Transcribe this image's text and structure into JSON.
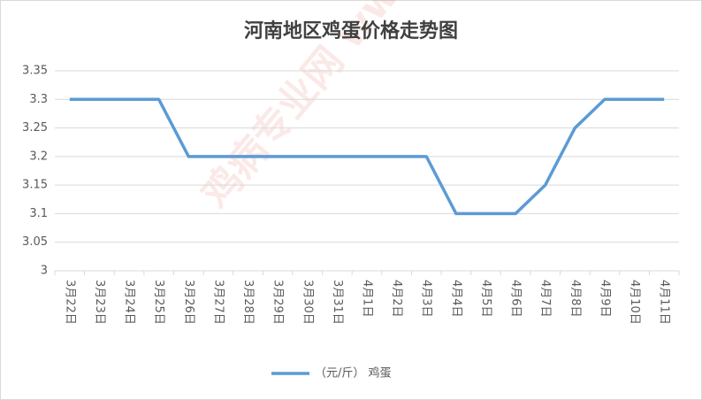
{
  "chart_data": {
    "type": "line",
    "title": "河南地区鸡蛋价格走势图",
    "watermark": "鸡病专业网 www.jbzyw.com",
    "categories": [
      "3月22日",
      "3月23日",
      "3月24日",
      "3月25日",
      "3月26日",
      "3月27日",
      "3月28日",
      "3月29日",
      "3月30日",
      "3月31日",
      "4月1日",
      "4月2日",
      "4月3日",
      "4月4日",
      "4月5日",
      "4月6日",
      "4月7日",
      "4月8日",
      "4月9日",
      "4月10日",
      "4月11日"
    ],
    "series": [
      {
        "name": "（元/斤） 鸡蛋",
        "color": "#5b9bd5",
        "values": [
          3.3,
          3.3,
          3.3,
          3.3,
          3.2,
          3.2,
          3.2,
          3.2,
          3.2,
          3.2,
          3.2,
          3.2,
          3.2,
          3.1,
          3.1,
          3.1,
          3.15,
          3.25,
          3.3,
          3.3,
          3.3
        ]
      }
    ],
    "ylim": [
      3,
      3.35
    ],
    "yticks": [
      3,
      3.05,
      3.1,
      3.15,
      3.2,
      3.25,
      3.3,
      3.35
    ],
    "grid": true,
    "legend": "bottom"
  }
}
